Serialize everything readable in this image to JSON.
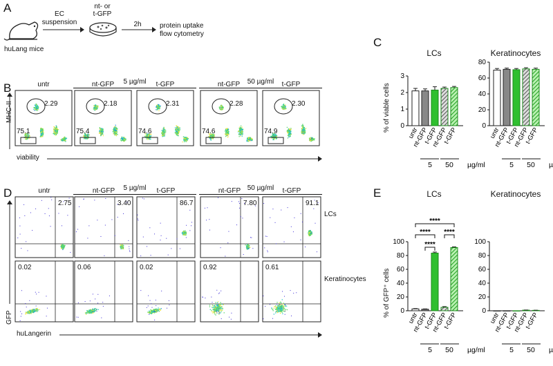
{
  "panel_labels": {
    "a": "A",
    "b": "B",
    "c": "C",
    "d": "D",
    "e": "E"
  },
  "panelA": {
    "mouse_label": "huLang mice",
    "step1": [
      "EC",
      "suspension"
    ],
    "step2_top": [
      "nt- or",
      "t-GFP"
    ],
    "step3_time": "2h",
    "step3_label": [
      "protein uptake",
      "flow cytometry"
    ]
  },
  "panelB": {
    "group_5": "5 µg/ml",
    "group_50": "50 µg/ml",
    "columns": [
      "untr",
      "nt-GFP",
      "t-GFP",
      "nt-GFP",
      "t-GFP"
    ],
    "gate_top": [
      "2.29",
      "2.18",
      "2.31",
      "2.28",
      "2.30"
    ],
    "gate_bottom": [
      "75.1",
      "75.4",
      "74.6",
      "74.6",
      "74.9"
    ],
    "y_axis": "MHC-II",
    "x_axis": "viability"
  },
  "panelD": {
    "group_5": "5 µg/ml",
    "group_50": "50 µg/ml",
    "columns": [
      "untr",
      "nt-GFP",
      "t-GFP",
      "nt-GFP",
      "t-GFP"
    ],
    "row1_values": [
      "2.75",
      "3.40",
      "86.7",
      "7.80",
      "91.1"
    ],
    "row2_values": [
      "0.02",
      "0.06",
      "0.02",
      "0.92",
      "0.61"
    ],
    "row1_label": "LCs",
    "row2_label": "Keratinocytes",
    "y_axis": "GFP",
    "x_axis": "huLangerin"
  },
  "chart_data": [
    {
      "type": "bar",
      "title": "LCs",
      "ylabel": "% of viable cells",
      "categories": [
        "untr",
        "nt-GFP",
        "t-GFP",
        "nt-GFP",
        "t-GFP"
      ],
      "values": [
        2.1,
        2.1,
        2.15,
        2.25,
        2.3
      ],
      "errors": [
        0.15,
        0.12,
        0.2,
        0.08,
        0.07
      ],
      "ylim": [
        0,
        3
      ],
      "yticks": [
        "0",
        "1",
        "2",
        "3"
      ],
      "dose_labels": [
        "5",
        "50"
      ],
      "unit": "µg/ml"
    },
    {
      "type": "bar",
      "title": "Keratinocytes",
      "ylabel": "",
      "categories": [
        "untr",
        "nt-GFP",
        "t-GFP",
        "nt-GFP",
        "t-GFP"
      ],
      "values": [
        70,
        71,
        70.5,
        71.5,
        71
      ],
      "errors": [
        2,
        1.5,
        1.5,
        1.5,
        1.5
      ],
      "ylim": [
        0,
        80
      ],
      "yticks": [
        "0",
        "20",
        "40",
        "60",
        "80"
      ],
      "dose_labels": [
        "5",
        "50"
      ],
      "unit": "µg/ml"
    },
    {
      "type": "bar",
      "title": "LCs",
      "ylabel": "% of GFP⁺ cells",
      "categories": [
        "untr",
        "nt-GFP",
        "t-GFP",
        "nt-GFP",
        "t-GFP"
      ],
      "values": [
        2.7,
        2.2,
        83.5,
        5,
        91.5
      ],
      "errors": [
        0.5,
        0.5,
        1.5,
        1,
        1
      ],
      "ylim": [
        0,
        100
      ],
      "yticks": [
        "0",
        "20",
        "40",
        "60",
        "80",
        "100"
      ],
      "significance": [
        "****",
        "****",
        "****",
        "****"
      ],
      "dose_labels": [
        "5",
        "50"
      ],
      "unit": "µg/ml"
    },
    {
      "type": "bar",
      "title": "Keratinocytes",
      "ylabel": "",
      "categories": [
        "untr",
        "nt-GFP",
        "t-GFP",
        "nt-GFP",
        "t-GFP"
      ],
      "values": [
        0.02,
        0.05,
        0.02,
        0.9,
        0.6
      ],
      "errors": [
        0,
        0,
        0,
        0.2,
        0.2
      ],
      "ylim": [
        0,
        100
      ],
      "yticks": [
        "0",
        "20",
        "40",
        "60",
        "80",
        "100"
      ],
      "dose_labels": [
        "5",
        "50"
      ],
      "unit": "µg/ml"
    }
  ]
}
